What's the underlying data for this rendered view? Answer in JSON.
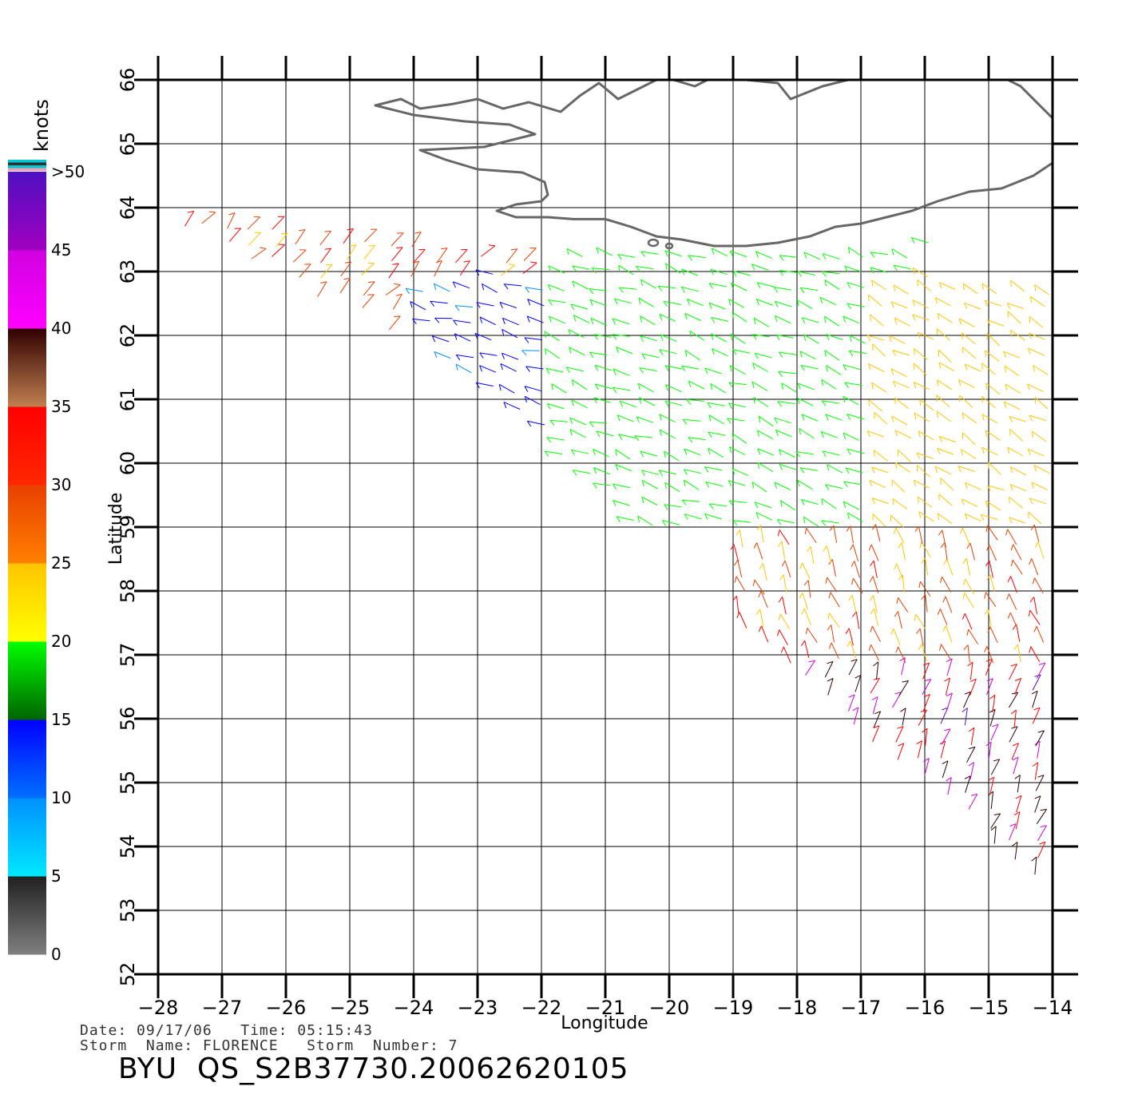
{
  "chart_data": {
    "type": "wind-vector-map",
    "xlabel": "Longitude",
    "ylabel": "Latitude",
    "x_ticks": [
      -28,
      -27,
      -26,
      -25,
      -24,
      -23,
      -22,
      -21,
      -20,
      -19,
      -18,
      -17,
      -16,
      -15,
      -14
    ],
    "y_ticks": [
      52,
      53,
      54,
      55,
      56,
      57,
      58,
      59,
      60,
      61,
      62,
      63,
      64,
      65,
      66
    ],
    "xlim": [
      -28,
      -14
    ],
    "ylim": [
      52,
      66
    ],
    "grid": true,
    "colorbar": {
      "unit_label": "knots",
      "tick_labels": [
        "0",
        "5",
        "10",
        "15",
        "20",
        "25",
        "30",
        "35",
        "40",
        "45",
        ">50"
      ],
      "bands": [
        {
          "from": 0,
          "to": 5,
          "colors": [
            "#808080",
            "#202020"
          ]
        },
        {
          "from": 5,
          "to": 10,
          "colors": [
            "#00e8ff",
            "#0090ff"
          ]
        },
        {
          "from": 10,
          "to": 15,
          "colors": [
            "#0070ff",
            "#0000ff"
          ]
        },
        {
          "from": 15,
          "to": 20,
          "colors": [
            "#006400",
            "#00ff00"
          ]
        },
        {
          "from": 20,
          "to": 25,
          "colors": [
            "#ffff00",
            "#ffc400"
          ]
        },
        {
          "from": 25,
          "to": 30,
          "colors": [
            "#ff8000",
            "#e84000"
          ]
        },
        {
          "from": 30,
          "to": 35,
          "colors": [
            "#ff2800",
            "#ff0000"
          ]
        },
        {
          "from": 35,
          "to": 40,
          "colors": [
            "#c08050",
            "#300000"
          ]
        },
        {
          "from": 40,
          "to": 45,
          "colors": [
            "#ff00ff",
            "#d000e0"
          ]
        },
        {
          "from": 45,
          "to": 50,
          "colors": [
            "#a000c0",
            "#5010c0"
          ]
        }
      ],
      "overflow_colors": [
        "#00c8d0",
        "#303030",
        "#00c8d0",
        "#f0a0c0"
      ]
    },
    "swath_corners": [
      [
        -28,
        64
      ],
      [
        -22,
        63.3
      ],
      [
        -14,
        64.1
      ],
      [
        -14,
        53.3
      ],
      [
        -24,
        62
      ]
    ],
    "wind_regions": [
      {
        "lon_range": [
          -28,
          -22
        ],
        "lat_range": [
          62,
          66
        ],
        "speed_knots": [
          24,
          33
        ],
        "direction_deg": 40
      },
      {
        "lon_range": [
          -24,
          -19
        ],
        "lat_range": [
          59,
          63
        ],
        "speed_knots": [
          9,
          14
        ],
        "direction_deg": 285
      },
      {
        "lon_range": [
          -22,
          -16
        ],
        "lat_range": [
          59,
          63.5
        ],
        "speed_knots": [
          15,
          19
        ],
        "direction_deg": 290
      },
      {
        "lon_range": [
          -17,
          -14
        ],
        "lat_range": [
          59,
          63
        ],
        "speed_knots": [
          20,
          25
        ],
        "direction_deg": 300
      },
      {
        "lon_range": [
          -19,
          -14
        ],
        "lat_range": [
          56,
          59
        ],
        "speed_knots": [
          22,
          32
        ],
        "direction_deg": 340
      },
      {
        "lon_range": [
          -18,
          -14
        ],
        "lat_range": [
          53.3,
          57
        ],
        "speed_knots": [
          30,
          46
        ],
        "direction_deg": 20
      }
    ],
    "landmass": "Iceland (southern coast)",
    "land_color": "#666666"
  },
  "info": {
    "line1": "Date: 09/17/06   Time: 05:15:43",
    "line2": "Storm  Name: FLORENCE   Storm  Number: 7"
  },
  "product_id": "BYU  QS_S2B37730.20062620105"
}
